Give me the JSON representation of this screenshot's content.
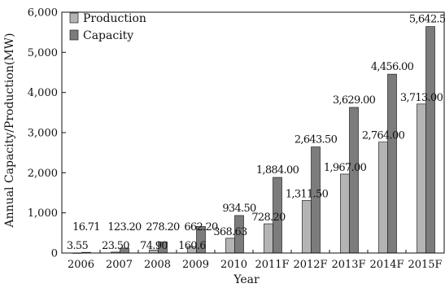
{
  "chart_data": {
    "type": "bar",
    "xlabel": "Year",
    "ylabel": "Annual Capacity/Production(MW)",
    "ylim": [
      0,
      6000
    ],
    "yticks": [
      "0",
      "1,000",
      "2,000",
      "3,000",
      "4,000",
      "5,000",
      "6,000"
    ],
    "legend_position": "top-left",
    "grid": false,
    "categories": [
      "2006",
      "2007",
      "2008",
      "2009",
      "2010",
      "2011F",
      "2012F",
      "2013F",
      "2014F",
      "2015F"
    ],
    "series": [
      {
        "name": "Production",
        "color": "#b4b4b4",
        "values": [
          3.55,
          23.5,
          74.9,
          160.6,
          368.63,
          728.2,
          1311.5,
          1967.0,
          2764.0,
          3713.0
        ],
        "labels": [
          "3.55",
          "23.50",
          "74.90",
          "160.6",
          "368.63",
          "728.20",
          "1,311.50",
          "1,967.00",
          "2,764.00",
          "3,713.00"
        ]
      },
      {
        "name": "Capacity",
        "color": "#7c7c7c",
        "values": [
          16.71,
          123.2,
          278.2,
          662.2,
          934.5,
          1884.0,
          2643.5,
          3629.0,
          4456.0,
          5642.5
        ],
        "labels": [
          "16.71",
          "123.20",
          "278.20",
          "662.20",
          "934.50",
          "1,884.00",
          "2,643.50",
          "3,629.00",
          "4,456.00",
          "5,642.50"
        ]
      }
    ]
  }
}
